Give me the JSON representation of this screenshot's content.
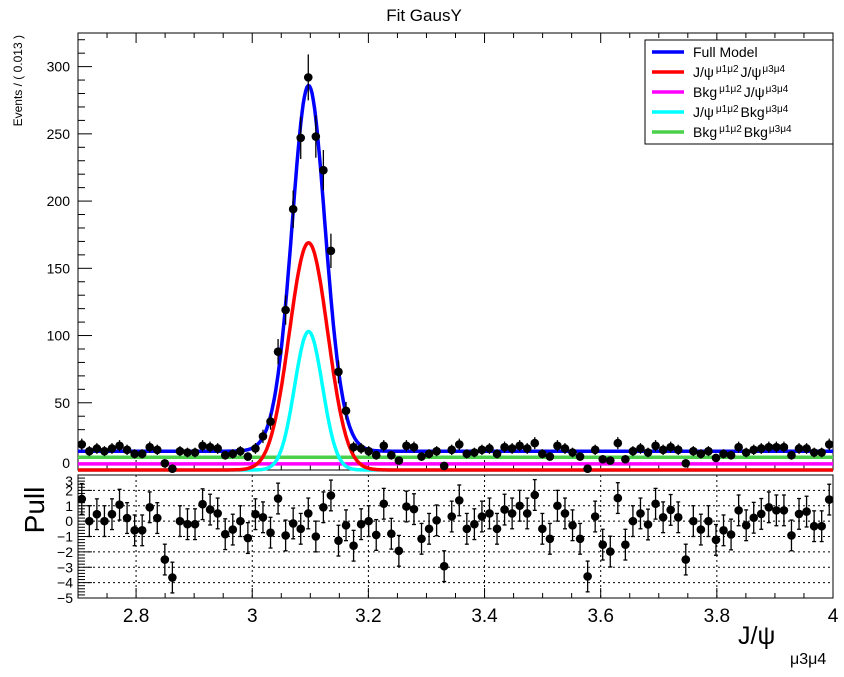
{
  "chart_data": {
    "type": "scatter",
    "title": "Fit GausY",
    "xlabel": "J/ψ",
    "xlabel_sub": "μ3μ4",
    "ylabel": "Events / ( 0.013 )",
    "pull_ylabel": "Pull",
    "xlim": [
      2.7,
      4.0
    ],
    "ylim": [
      0,
      325
    ],
    "pull_ylim": [
      -5,
      3
    ],
    "bin_width": 0.013,
    "x_ticks": [
      "2.8",
      "3",
      "3.2",
      "3.4",
      "3.6",
      "3.8",
      "4"
    ],
    "x_tick_values": [
      2.8,
      3.0,
      3.2,
      3.4,
      3.6,
      3.8,
      4.0
    ],
    "y_ticks": [
      "0",
      "50",
      "100",
      "150",
      "200",
      "250",
      "300"
    ],
    "y_tick_values": [
      0,
      50,
      100,
      150,
      200,
      250,
      300
    ],
    "pull_ticks": [
      "3",
      "2",
      "1",
      "0",
      "−1",
      "−2",
      "−3",
      "−4",
      "−5"
    ],
    "pull_tick_values": [
      3,
      2,
      1,
      0,
      -1,
      -2,
      -3,
      -4,
      -5
    ],
    "counts": [
      19,
      14,
      16,
      14,
      16,
      18,
      15,
      12,
      12,
      17,
      15,
      5,
      1,
      14,
      13,
      13,
      18,
      17,
      16,
      11,
      12,
      14,
      10,
      16,
      25,
      36,
      88,
      119,
      194,
      247,
      292,
      248,
      223,
      163,
      73,
      44,
      17,
      16,
      14,
      11,
      18,
      11,
      7,
      18,
      17,
      10,
      12,
      14,
      3,
      15,
      19,
      12,
      13,
      15,
      16,
      12,
      17,
      16,
      18,
      16,
      20,
      12,
      10,
      18,
      16,
      13,
      10,
      1,
      15,
      8,
      7,
      20,
      8,
      14,
      16,
      13,
      18,
      15,
      17,
      15,
      5,
      14,
      12,
      14,
      9,
      12,
      11,
      17,
      13,
      15,
      16,
      17,
      17,
      17,
      11,
      16,
      16,
      13,
      13,
      19
    ],
    "pulls": [
      1.44,
      0,
      0.45,
      0,
      0.45,
      1.07,
      0.2,
      -0.6,
      -0.6,
      0.9,
      0.2,
      -2.5,
      -3.67,
      0,
      -0.2,
      -0.2,
      1.1,
      0.75,
      0.5,
      -0.85,
      -0.55,
      0,
      -1.1,
      0.45,
      0.25,
      -0.75,
      1.47,
      -0.93,
      -0.15,
      -0.5,
      0.5,
      -1,
      0.9,
      1.67,
      -1.27,
      -0.27,
      -1.6,
      -0.2,
      0,
      -0.9,
      1.13,
      -0.82,
      -1.93,
      0.95,
      0.78,
      -1.15,
      -0.5,
      0.05,
      -2.93,
      0.3,
      1.35,
      -0.5,
      -0.2,
      0.3,
      0.5,
      -0.5,
      0.75,
      0.5,
      1,
      0.5,
      1.7,
      -0.5,
      -1.15,
      1,
      0.5,
      -0.27,
      -1.15,
      -3.6,
      0.3,
      -1.53,
      -1.98,
      1.5,
      -1.53,
      0,
      0.5,
      -0.22,
      1.13,
      0.25,
      0.73,
      0.25,
      -2.5,
      0,
      -0.55,
      0,
      -1.22,
      -0.6,
      -0.87,
      0.7,
      -0.27,
      0.22,
      0.47,
      0.9,
      0.7,
      0.7,
      -0.93,
      0.47,
      0.62,
      -0.33,
      -0.33,
      1.4
    ],
    "components": [
      {
        "name": "Full Model",
        "color": "#0000ff",
        "kind": "sum"
      },
      {
        "name": "J/ψ J/ψ",
        "name_parts": [
          "J/ψ",
          "μ1μ2",
          "J/ψ",
          "μ3μ4"
        ],
        "color": "#ff0000",
        "kind": "gauss",
        "amplitude": 169,
        "mean": 3.097,
        "sigma": 0.033
      },
      {
        "name": "Bkg J/ψ",
        "name_parts": [
          "Bkg",
          "μ1μ2",
          "J/ψ",
          "μ3μ4"
        ],
        "color": "#ff00ff",
        "kind": "flat",
        "level": 4.5
      },
      {
        "name": "J/ψ Bkg",
        "name_parts": [
          "J/ψ",
          "μ1μ2",
          "Bkg",
          "μ3μ4"
        ],
        "color": "#00ffff",
        "kind": "gauss",
        "amplitude": 103,
        "mean": 3.097,
        "sigma": 0.024
      },
      {
        "name": "Bkg Bkg",
        "name_parts": [
          "Bkg",
          "μ1μ2",
          "Bkg",
          "μ3μ4"
        ],
        "color": "#4cd04c",
        "kind": "flat",
        "level": 9.5
      }
    ],
    "legend_position": "top-right",
    "pull_grid": true
  }
}
